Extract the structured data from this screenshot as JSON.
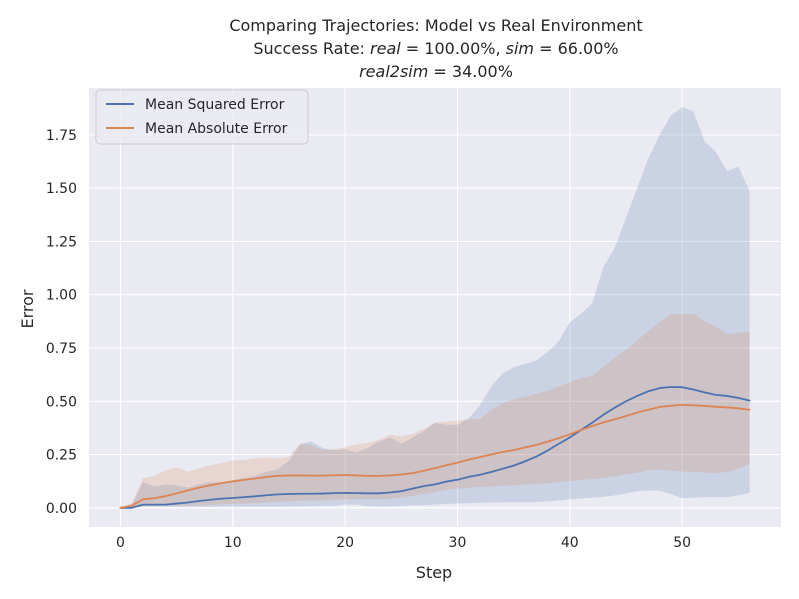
{
  "chart_data": {
    "type": "line",
    "title_lines": [
      "Comparing Trajectories: Model vs Real Environment",
      "Success Rate: real = 100.00%, sim = 66.00%",
      "real2sim = 34.00%"
    ],
    "title_parts": {
      "line1": "Comparing Trajectories: Model vs Real Environment",
      "line2_prefix": "Success Rate: ",
      "line2_real_var": "real",
      "line2_eq1": " = 100.00%, ",
      "line2_sim_var": "sim",
      "line2_eq2": " = 66.00%",
      "line3_var": "real2sim",
      "line3_eq": " = 34.00%"
    },
    "xlabel": "Step",
    "ylabel": "Error",
    "xlim": [
      -2.8,
      58.8
    ],
    "ylim": [
      -0.09,
      1.97
    ],
    "xticks": [
      0,
      10,
      20,
      30,
      40,
      50
    ],
    "yticks": [
      0.0,
      0.25,
      0.5,
      0.75,
      1.0,
      1.25,
      1.5,
      1.75
    ],
    "ytick_labels": [
      "0.00",
      "0.25",
      "0.50",
      "0.75",
      "1.00",
      "1.25",
      "1.50",
      "1.75"
    ],
    "grid": true,
    "legend_position": "top-left",
    "background": "#eaeaf2",
    "series": [
      {
        "name": "Mean Squared Error",
        "color": "#4c72b0",
        "x": [
          0,
          1,
          2,
          3,
          4,
          5,
          6,
          7,
          8,
          9,
          10,
          11,
          12,
          13,
          14,
          15,
          16,
          17,
          18,
          19,
          20,
          21,
          22,
          23,
          24,
          25,
          26,
          27,
          28,
          29,
          30,
          31,
          32,
          33,
          34,
          35,
          36,
          37,
          38,
          39,
          40,
          41,
          42,
          43,
          44,
          45,
          46,
          47,
          48,
          49,
          50,
          51,
          52,
          53,
          54,
          55,
          56
        ],
        "mean": [
          0.0,
          0.0,
          0.015,
          0.015,
          0.015,
          0.02,
          0.025,
          0.032,
          0.038,
          0.043,
          0.046,
          0.05,
          0.054,
          0.059,
          0.063,
          0.065,
          0.066,
          0.066,
          0.067,
          0.069,
          0.07,
          0.069,
          0.068,
          0.068,
          0.072,
          0.078,
          0.09,
          0.102,
          0.11,
          0.123,
          0.132,
          0.145,
          0.155,
          0.168,
          0.183,
          0.198,
          0.218,
          0.24,
          0.268,
          0.3,
          0.33,
          0.365,
          0.4,
          0.437,
          0.47,
          0.5,
          0.525,
          0.547,
          0.562,
          0.567,
          0.566,
          0.555,
          0.542,
          0.53,
          0.525,
          0.516,
          0.503
        ],
        "upper": [
          0.0,
          0.01,
          0.12,
          0.1,
          0.11,
          0.105,
          0.095,
          0.11,
          0.12,
          0.12,
          0.13,
          0.14,
          0.15,
          0.17,
          0.18,
          0.22,
          0.3,
          0.31,
          0.28,
          0.27,
          0.275,
          0.26,
          0.28,
          0.31,
          0.33,
          0.3,
          0.33,
          0.36,
          0.4,
          0.39,
          0.39,
          0.42,
          0.48,
          0.57,
          0.63,
          0.66,
          0.675,
          0.69,
          0.73,
          0.78,
          0.87,
          0.91,
          0.96,
          1.13,
          1.22,
          1.36,
          1.5,
          1.64,
          1.75,
          1.84,
          1.88,
          1.86,
          1.72,
          1.67,
          1.58,
          1.6,
          1.49
        ],
        "lower": [
          0.0,
          0.0,
          0.005,
          0.005,
          0.005,
          0.005,
          0.005,
          0.005,
          0.005,
          0.005,
          0.005,
          0.005,
          0.005,
          0.005,
          0.005,
          0.006,
          0.007,
          0.008,
          0.01,
          0.01,
          0.015,
          0.015,
          0.008,
          0.006,
          0.007,
          0.009,
          0.012,
          0.012,
          0.015,
          0.018,
          0.02,
          0.022,
          0.024,
          0.025,
          0.026,
          0.026,
          0.026,
          0.027,
          0.03,
          0.035,
          0.04,
          0.044,
          0.048,
          0.052,
          0.058,
          0.068,
          0.078,
          0.082,
          0.08,
          0.065,
          0.045,
          0.048,
          0.05,
          0.05,
          0.05,
          0.058,
          0.07
        ]
      },
      {
        "name": "Mean Absolute Error",
        "color": "#dd8452",
        "x": [
          0,
          1,
          2,
          3,
          4,
          5,
          6,
          7,
          8,
          9,
          10,
          11,
          12,
          13,
          14,
          15,
          16,
          17,
          18,
          19,
          20,
          21,
          22,
          23,
          24,
          25,
          26,
          27,
          28,
          29,
          30,
          31,
          32,
          33,
          34,
          35,
          36,
          37,
          38,
          39,
          40,
          41,
          42,
          43,
          44,
          45,
          46,
          47,
          48,
          49,
          50,
          51,
          52,
          53,
          54,
          55,
          56
        ],
        "mean": [
          0.0,
          0.01,
          0.04,
          0.045,
          0.055,
          0.068,
          0.082,
          0.095,
          0.106,
          0.116,
          0.124,
          0.131,
          0.137,
          0.145,
          0.15,
          0.152,
          0.152,
          0.151,
          0.151,
          0.153,
          0.154,
          0.152,
          0.15,
          0.15,
          0.152,
          0.156,
          0.163,
          0.174,
          0.186,
          0.2,
          0.212,
          0.226,
          0.238,
          0.25,
          0.262,
          0.271,
          0.283,
          0.295,
          0.31,
          0.327,
          0.345,
          0.365,
          0.384,
          0.401,
          0.415,
          0.431,
          0.447,
          0.461,
          0.473,
          0.479,
          0.483,
          0.481,
          0.478,
          0.474,
          0.471,
          0.467,
          0.46
        ],
        "upper": [
          0.0,
          0.02,
          0.14,
          0.15,
          0.175,
          0.19,
          0.17,
          0.185,
          0.2,
          0.21,
          0.222,
          0.225,
          0.232,
          0.236,
          0.232,
          0.24,
          0.3,
          0.295,
          0.27,
          0.275,
          0.285,
          0.298,
          0.304,
          0.318,
          0.344,
          0.335,
          0.347,
          0.37,
          0.4,
          0.405,
          0.41,
          0.415,
          0.418,
          0.46,
          0.49,
          0.51,
          0.52,
          0.535,
          0.55,
          0.57,
          0.59,
          0.61,
          0.62,
          0.66,
          0.705,
          0.74,
          0.785,
          0.83,
          0.87,
          0.91,
          0.91,
          0.91,
          0.875,
          0.85,
          0.815,
          0.82,
          0.83
        ],
        "lower": [
          0.0,
          0.0,
          0.01,
          0.01,
          0.01,
          0.01,
          0.01,
          0.012,
          0.014,
          0.016,
          0.018,
          0.02,
          0.022,
          0.025,
          0.028,
          0.03,
          0.033,
          0.035,
          0.035,
          0.038,
          0.04,
          0.04,
          0.04,
          0.04,
          0.042,
          0.048,
          0.055,
          0.065,
          0.075,
          0.085,
          0.09,
          0.095,
          0.098,
          0.1,
          0.105,
          0.105,
          0.11,
          0.112,
          0.115,
          0.12,
          0.125,
          0.13,
          0.135,
          0.14,
          0.148,
          0.158,
          0.165,
          0.175,
          0.18,
          0.175,
          0.17,
          0.17,
          0.165,
          0.162,
          0.168,
          0.185,
          0.205
        ]
      }
    ]
  }
}
